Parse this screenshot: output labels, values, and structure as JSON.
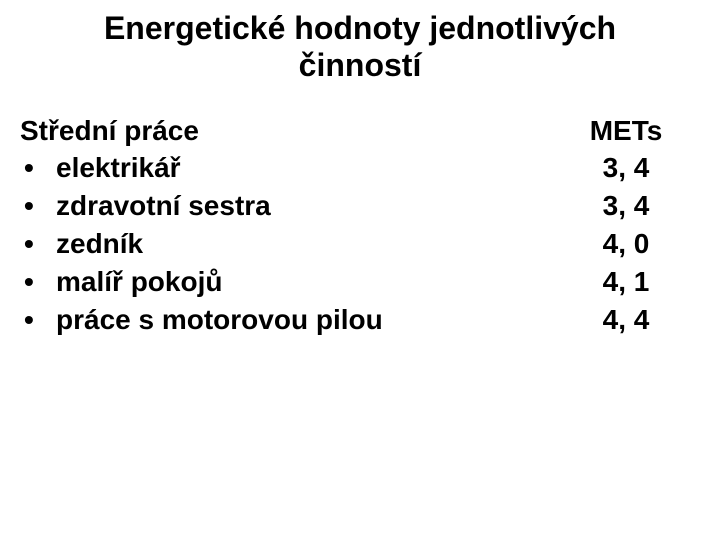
{
  "title_line1": "Energetické hodnoty jednotlivých",
  "title_line2": "činností",
  "header_left": "Střední práce",
  "header_right": "METs",
  "bullet_glyph": "•",
  "items": [
    {
      "activity": "elektrikář",
      "value": "3, 4"
    },
    {
      "activity": "zdravotní sestra",
      "value": "3, 4"
    },
    {
      "activity": "zedník",
      "value": "4, 0"
    },
    {
      "activity": "malíř pokojů",
      "value": "4, 1"
    },
    {
      "activity": "práce s motorovou pilou",
      "value": "4, 4"
    }
  ],
  "colors": {
    "text": "#000000",
    "background": "#ffffff"
  },
  "typography": {
    "title_fontsize": 32,
    "body_fontsize": 28,
    "font_family": "Arial",
    "weight": "bold"
  }
}
